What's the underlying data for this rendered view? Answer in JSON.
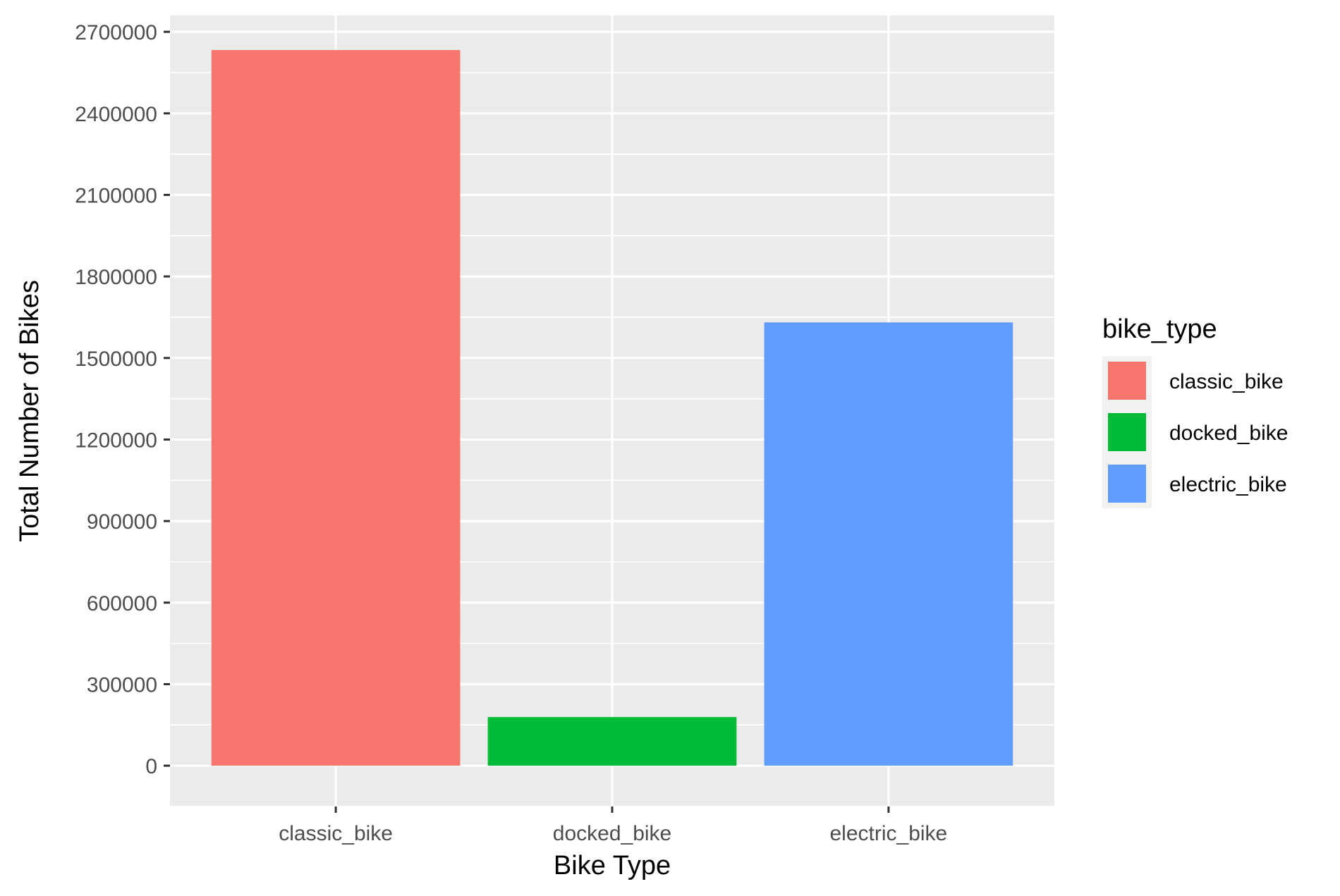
{
  "chart_data": {
    "type": "bar",
    "xlabel": "Bike Type",
    "ylabel": "Total Number of Bikes",
    "categories": [
      "classic_bike",
      "docked_bike",
      "electric_bike"
    ],
    "values": [
      2633000,
      179000,
      1631000
    ],
    "colors": [
      "#F8766D",
      "#00BA38",
      "#619CFF"
    ],
    "ylim": [
      -150000,
      2760000
    ],
    "yticks": [
      0,
      300000,
      600000,
      900000,
      1200000,
      1500000,
      1800000,
      2100000,
      2400000,
      2700000
    ],
    "ytick_labels": [
      "0",
      "300000",
      "600000",
      "900000",
      "1200000",
      "1500000",
      "1800000",
      "2100000",
      "2400000",
      "2700000"
    ],
    "grid": true,
    "panel_background": "#EBEBEB",
    "grid_color": "#FFFFFF",
    "legend": {
      "title": "bike_type",
      "position": "right",
      "entries": [
        "classic_bike",
        "docked_bike",
        "electric_bike"
      ]
    }
  }
}
